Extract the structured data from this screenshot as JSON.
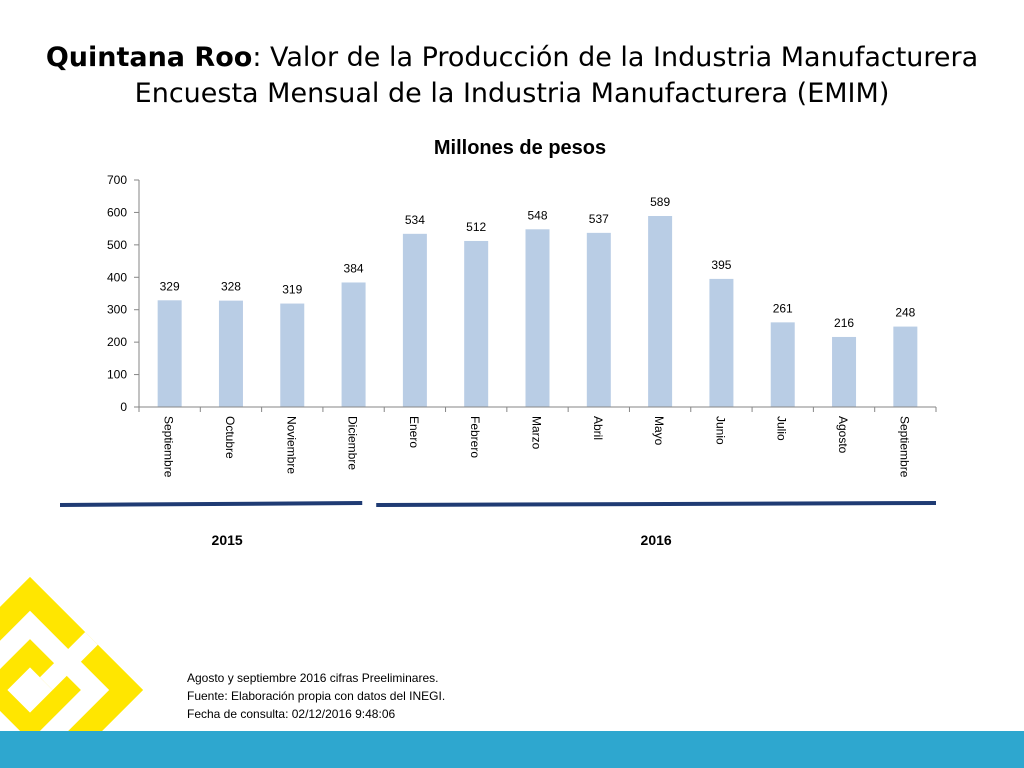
{
  "header": {
    "title_bold": "Quintana Roo",
    "title_rest": ": Valor de la Producción de la Industria Manufacturera",
    "subtitle": "Encuesta Mensual de la Industria Manufacturera (EMIM)"
  },
  "chart_data": {
    "type": "bar",
    "title": "Millones de pesos",
    "categories": [
      "Septiembre",
      "Octubre",
      "Noviembre",
      "Diciembre",
      "Enero",
      "Febrero",
      "Marzo",
      "Abril",
      "Mayo",
      "Junio",
      "Julio",
      "Agosto",
      "Septiembre"
    ],
    "values": [
      329,
      328,
      319,
      384,
      534,
      512,
      548,
      537,
      589,
      395,
      261,
      216,
      248
    ],
    "ylim": [
      0,
      700
    ],
    "yticks": [
      0,
      100,
      200,
      300,
      400,
      500,
      600,
      700
    ],
    "bar_color": "#b9cde5",
    "groups": [
      {
        "label": "2015",
        "from": 0,
        "to": 3
      },
      {
        "label": "2016",
        "from": 4,
        "to": 12
      }
    ],
    "group_line_color": "#1f3b73"
  },
  "footer": {
    "notes": [
      "Agosto y septiembre 2016 cifras Preeliminares.",
      "Fuente: Elaboración propia con datos del INEGI.",
      "Fecha de consulta: 02/12/2016 9:48:06"
    ],
    "band_color": "#2ea7cf",
    "logo_color": "#ffe600",
    "logo_icon": "yellow-square-spiral-logo"
  }
}
